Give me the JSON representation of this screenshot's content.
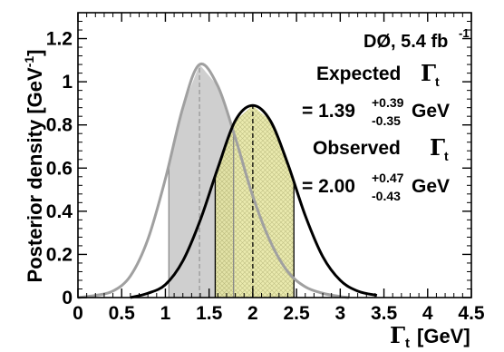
{
  "chart_data": {
    "type": "area",
    "xlabel_symbol": "Γ",
    "xlabel_subscript": "t",
    "xlabel_unit": "[GeV]",
    "ylabel_text": "Posterior density [GeV",
    "ylabel_exponent": "-1",
    "ylabel_close": "]",
    "xlim": [
      0,
      4.5
    ],
    "ylim": [
      0,
      1.32
    ],
    "x_ticks": [
      "0",
      "0.5",
      "1",
      "1.5",
      "2",
      "2.5",
      "3",
      "3.5",
      "4",
      "4.5"
    ],
    "y_ticks": [
      "0",
      "0.2",
      "0.4",
      "0.6",
      "0.8",
      "1",
      "1.2"
    ],
    "series": [
      {
        "role": "expected",
        "color": "#a0a0a0",
        "fill": "#cccccc",
        "x": [
          0.0,
          0.2,
          0.4,
          0.6,
          0.8,
          1.0,
          1.2,
          1.39,
          1.6,
          1.8,
          2.0,
          2.2,
          2.4,
          2.6,
          2.8,
          3.0,
          3.1
        ],
        "y": [
          0.0,
          0.01,
          0.03,
          0.1,
          0.27,
          0.55,
          0.88,
          1.08,
          0.98,
          0.74,
          0.47,
          0.26,
          0.12,
          0.05,
          0.02,
          0.005,
          0.0
        ],
        "peak": 1.39,
        "interval": [
          1.04,
          1.78
        ]
      },
      {
        "role": "observed",
        "color": "#000000",
        "fill": "#e6e6a0",
        "x": [
          0.6,
          0.8,
          1.0,
          1.2,
          1.4,
          1.6,
          1.8,
          2.0,
          2.2,
          2.4,
          2.6,
          2.8,
          3.0,
          3.2,
          3.42
        ],
        "y": [
          0.0,
          0.02,
          0.06,
          0.17,
          0.36,
          0.6,
          0.82,
          0.89,
          0.82,
          0.62,
          0.38,
          0.19,
          0.08,
          0.03,
          0.01
        ],
        "peak": 2.0,
        "interval": [
          1.57,
          2.47
        ]
      }
    ],
    "annotations": {
      "experiment": "DØ, 5.4 fb",
      "experiment_exp": "-1",
      "expected_title": "Expected",
      "expected_value": "= 1.39",
      "expected_up": "+0.39",
      "expected_down": "-0.35",
      "expected_unit": "GeV",
      "observed_title": "Observed",
      "observed_value": "= 2.00",
      "observed_up": "+0.47",
      "observed_down": "-0.43",
      "observed_unit": "GeV",
      "gamma_symbol": "Γ",
      "gamma_sub": "t"
    },
    "grid": false,
    "legend": "none"
  }
}
